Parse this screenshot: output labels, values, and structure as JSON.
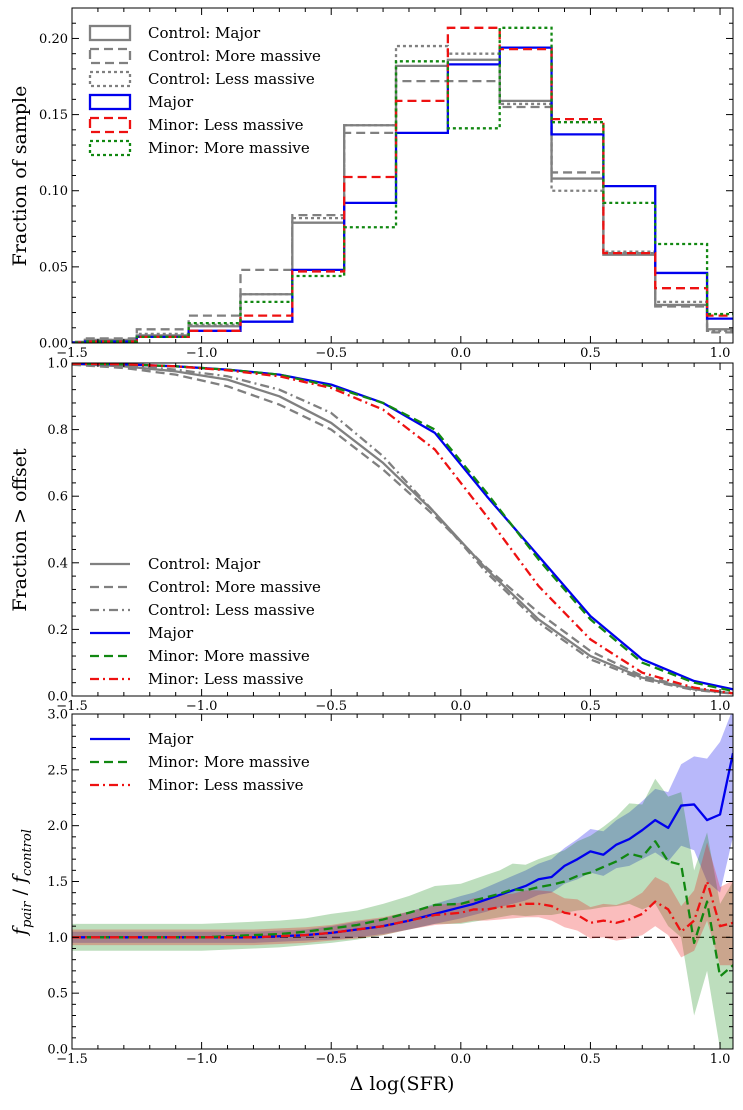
{
  "figure": {
    "xlabel": "Δ log(SFR)",
    "x_ticks": [
      "−1.5",
      "−1.0",
      "−0.5",
      "0.0",
      "0.5",
      "1.0"
    ],
    "colors": {
      "control": "#808080",
      "major": "#0000ee",
      "minor_more": "#118811",
      "minor_less": "#ee1111",
      "ref": "#000000"
    }
  },
  "chart_data": [
    {
      "type": "histogram",
      "panel": "top",
      "ylabel": "Fraction of sample",
      "xlim": [
        -1.5,
        1.05
      ],
      "ylim": [
        0,
        0.22
      ],
      "y_ticks": [
        "0.00",
        "0.05",
        "0.10",
        "0.15",
        "0.20"
      ],
      "bin_edges": [
        -1.65,
        -1.45,
        -1.25,
        -1.05,
        -0.85,
        -0.65,
        -0.45,
        -0.25,
        -0.05,
        0.15,
        0.35,
        0.55,
        0.75,
        0.95,
        1.15
      ],
      "series": [
        {
          "name": "Control: Major",
          "style": "solid",
          "color": "control",
          "values": [
            0.0005,
            0.002,
            0.005,
            0.011,
            0.032,
            0.079,
            0.143,
            0.182,
            0.186,
            0.159,
            0.108,
            0.058,
            0.025,
            0.009
          ]
        },
        {
          "name": "Control: More massive",
          "style": "dashed",
          "color": "control",
          "values": [
            0.0008,
            0.003,
            0.009,
            0.018,
            0.048,
            0.084,
            0.138,
            0.172,
            0.172,
            0.155,
            0.112,
            0.059,
            0.024,
            0.007
          ]
        },
        {
          "name": "Control: Less massive",
          "style": "dotted",
          "color": "control",
          "values": [
            0.0005,
            0.002,
            0.006,
            0.012,
            0.032,
            0.082,
            0.143,
            0.195,
            0.19,
            0.157,
            0.1,
            0.06,
            0.027,
            0.008
          ]
        },
        {
          "name": "Major",
          "style": "solid",
          "color": "major",
          "values": [
            0.0003,
            0.001,
            0.004,
            0.008,
            0.014,
            0.048,
            0.092,
            0.138,
            0.183,
            0.194,
            0.137,
            0.103,
            0.046,
            0.016
          ]
        },
        {
          "name": "Minor: Less massive",
          "style": "dashed",
          "color": "minor_less",
          "values": [
            0.0003,
            0.001,
            0.004,
            0.008,
            0.018,
            0.047,
            0.109,
            0.159,
            0.207,
            0.193,
            0.147,
            0.059,
            0.036,
            0.018
          ]
        },
        {
          "name": "Minor: More massive",
          "style": "dotted",
          "color": "minor_more",
          "values": [
            0.0003,
            0.001,
            0.004,
            0.013,
            0.027,
            0.044,
            0.076,
            0.185,
            0.141,
            0.207,
            0.145,
            0.092,
            0.065,
            0.019
          ]
        }
      ],
      "legend": {
        "placement": "upper-left"
      }
    },
    {
      "type": "line",
      "panel": "middle",
      "ylabel": "Fraction > offset",
      "xlim": [
        -1.5,
        1.05
      ],
      "ylim": [
        0,
        1.0
      ],
      "y_ticks": [
        "0.0",
        "0.2",
        "0.4",
        "0.6",
        "0.8",
        "1.0"
      ],
      "x": [
        -1.5,
        -1.3,
        -1.1,
        -0.9,
        -0.7,
        -0.5,
        -0.3,
        -0.1,
        0.1,
        0.3,
        0.5,
        0.7,
        0.9,
        1.05
      ],
      "series": [
        {
          "name": "Control: Major",
          "style": "solid",
          "color": "control",
          "values": [
            0.997,
            0.99,
            0.975,
            0.95,
            0.9,
            0.82,
            0.7,
            0.55,
            0.38,
            0.23,
            0.12,
            0.055,
            0.02,
            0.008
          ]
        },
        {
          "name": "Control: More massive",
          "style": "dashed",
          "color": "control",
          "values": [
            0.995,
            0.985,
            0.965,
            0.93,
            0.875,
            0.8,
            0.68,
            0.54,
            0.385,
            0.25,
            0.135,
            0.06,
            0.022,
            0.008
          ]
        },
        {
          "name": "Control: Less massive",
          "style": "dashdot",
          "color": "control",
          "values": [
            0.998,
            0.993,
            0.98,
            0.96,
            0.92,
            0.85,
            0.72,
            0.55,
            0.37,
            0.22,
            0.11,
            0.05,
            0.018,
            0.007
          ]
        },
        {
          "name": "Major",
          "style": "solid",
          "color": "major",
          "values": [
            0.998,
            0.996,
            0.99,
            0.98,
            0.965,
            0.935,
            0.88,
            0.79,
            0.6,
            0.42,
            0.24,
            0.11,
            0.045,
            0.02
          ]
        },
        {
          "name": "Minor: More massive",
          "style": "dashed",
          "color": "minor_more",
          "values": [
            0.998,
            0.996,
            0.99,
            0.98,
            0.965,
            0.93,
            0.88,
            0.8,
            0.61,
            0.41,
            0.23,
            0.1,
            0.04,
            0.015
          ]
        },
        {
          "name": "Minor: Less massive",
          "style": "dashdot",
          "color": "minor_less",
          "values": [
            0.998,
            0.996,
            0.99,
            0.978,
            0.96,
            0.925,
            0.86,
            0.74,
            0.54,
            0.33,
            0.17,
            0.07,
            0.025,
            0.008
          ]
        }
      ],
      "legend": {
        "placement": "lower-left"
      }
    },
    {
      "type": "line",
      "panel": "bottom",
      "ylabel_main": "f",
      "ylabel_sub1": "pair",
      "ylabel_sep": " / ",
      "ylabel_sub2": "control",
      "xlim": [
        -1.5,
        1.05
      ],
      "ylim": [
        0,
        3.0
      ],
      "y_ticks": [
        "0.0",
        "0.5",
        "1.0",
        "1.5",
        "2.0",
        "2.5",
        "3.0"
      ],
      "reference_line": 1.0,
      "x": [
        -1.5,
        -1.4,
        -1.3,
        -1.2,
        -1.1,
        -1.0,
        -0.9,
        -0.8,
        -0.7,
        -0.6,
        -0.5,
        -0.4,
        -0.3,
        -0.2,
        -0.1,
        0.0,
        0.05,
        0.1,
        0.15,
        0.2,
        0.25,
        0.3,
        0.35,
        0.4,
        0.45,
        0.5,
        0.55,
        0.6,
        0.65,
        0.7,
        0.75,
        0.8,
        0.85,
        0.9,
        0.95,
        1.0,
        1.05
      ],
      "series": [
        {
          "name": "Major",
          "style": "solid",
          "color": "major",
          "values": [
            1.0,
            1.0,
            1.0,
            1.0,
            1.0,
            1.0,
            1.0,
            1.0,
            1.01,
            1.02,
            1.04,
            1.07,
            1.1,
            1.15,
            1.21,
            1.27,
            1.3,
            1.34,
            1.38,
            1.42,
            1.46,
            1.52,
            1.54,
            1.64,
            1.7,
            1.77,
            1.74,
            1.83,
            1.88,
            1.96,
            2.05,
            1.98,
            2.18,
            2.19,
            2.05,
            2.1,
            2.65
          ],
          "band_lower": [
            0.95,
            0.95,
            0.95,
            0.95,
            0.95,
            0.95,
            0.95,
            0.95,
            0.96,
            0.97,
            0.98,
            1.0,
            1.03,
            1.07,
            1.12,
            1.17,
            1.2,
            1.23,
            1.27,
            1.3,
            1.33,
            1.38,
            1.4,
            1.48,
            1.52,
            1.58,
            1.55,
            1.62,
            1.64,
            1.7,
            1.76,
            1.68,
            1.82,
            1.78,
            1.5,
            1.4,
            1.9
          ],
          "band_upper": [
            1.05,
            1.05,
            1.05,
            1.05,
            1.05,
            1.05,
            1.05,
            1.05,
            1.06,
            1.07,
            1.1,
            1.14,
            1.17,
            1.23,
            1.3,
            1.37,
            1.4,
            1.45,
            1.5,
            1.55,
            1.6,
            1.66,
            1.7,
            1.8,
            1.88,
            1.97,
            1.95,
            2.05,
            2.12,
            2.22,
            2.33,
            2.3,
            2.55,
            2.62,
            2.6,
            2.75,
            3.05
          ]
        },
        {
          "name": "Minor: More massive",
          "style": "dashed",
          "color": "minor_more",
          "values": [
            1.0,
            1.0,
            1.0,
            1.0,
            1.0,
            1.0,
            1.01,
            1.02,
            1.03,
            1.05,
            1.08,
            1.11,
            1.16,
            1.22,
            1.29,
            1.3,
            1.33,
            1.36,
            1.39,
            1.43,
            1.42,
            1.45,
            1.47,
            1.5,
            1.55,
            1.58,
            1.63,
            1.68,
            1.75,
            1.72,
            1.86,
            1.68,
            1.65,
            0.95,
            1.32,
            0.65,
            0.75
          ],
          "band_lower": [
            0.88,
            0.88,
            0.88,
            0.88,
            0.88,
            0.88,
            0.89,
            0.9,
            0.91,
            0.93,
            0.95,
            0.98,
            1.02,
            1.07,
            1.12,
            1.12,
            1.14,
            1.16,
            1.18,
            1.2,
            1.19,
            1.2,
            1.2,
            1.22,
            1.24,
            1.25,
            1.27,
            1.28,
            1.3,
            1.25,
            1.3,
            1.1,
            1.0,
            0.3,
            0.7,
            0.0,
            0.0
          ],
          "band_upper": [
            1.12,
            1.12,
            1.12,
            1.12,
            1.12,
            1.12,
            1.13,
            1.14,
            1.15,
            1.17,
            1.21,
            1.24,
            1.3,
            1.37,
            1.46,
            1.48,
            1.52,
            1.56,
            1.6,
            1.66,
            1.65,
            1.7,
            1.74,
            1.78,
            1.86,
            1.91,
            1.99,
            2.08,
            2.2,
            2.19,
            2.42,
            2.26,
            2.3,
            1.6,
            1.94,
            1.3,
            1.5
          ]
        },
        {
          "name": "Minor: Less massive",
          "style": "dashdot",
          "color": "minor_less",
          "values": [
            1.0,
            1.0,
            1.0,
            1.0,
            1.0,
            1.0,
            1.0,
            1.0,
            1.01,
            1.02,
            1.04,
            1.07,
            1.1,
            1.15,
            1.2,
            1.22,
            1.25,
            1.25,
            1.27,
            1.28,
            1.3,
            1.3,
            1.28,
            1.22,
            1.2,
            1.13,
            1.15,
            1.13,
            1.16,
            1.21,
            1.32,
            1.25,
            1.05,
            1.15,
            1.5,
            1.1,
            1.13
          ],
          "band_lower": [
            0.93,
            0.93,
            0.93,
            0.93,
            0.93,
            0.93,
            0.93,
            0.93,
            0.94,
            0.95,
            0.97,
            0.99,
            1.02,
            1.07,
            1.11,
            1.13,
            1.15,
            1.15,
            1.16,
            1.17,
            1.18,
            1.18,
            1.15,
            1.09,
            1.06,
            0.99,
            1.0,
            0.97,
            0.99,
            1.02,
            1.1,
            1.02,
            0.82,
            0.88,
            1.15,
            0.75,
            0.75
          ],
          "band_upper": [
            1.07,
            1.07,
            1.07,
            1.07,
            1.07,
            1.07,
            1.07,
            1.07,
            1.08,
            1.09,
            1.11,
            1.15,
            1.18,
            1.23,
            1.29,
            1.31,
            1.35,
            1.35,
            1.38,
            1.39,
            1.42,
            1.42,
            1.41,
            1.35,
            1.34,
            1.27,
            1.3,
            1.29,
            1.33,
            1.4,
            1.54,
            1.48,
            1.28,
            1.42,
            1.85,
            1.45,
            1.51
          ]
        }
      ],
      "legend": {
        "placement": "upper-left"
      }
    }
  ]
}
